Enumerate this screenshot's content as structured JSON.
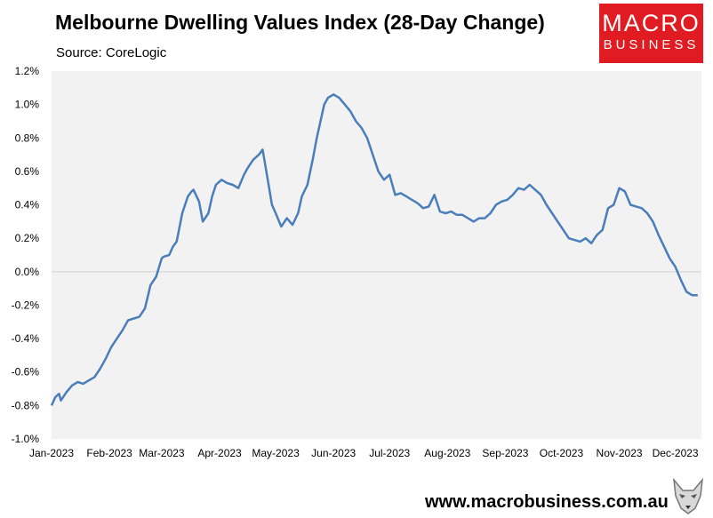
{
  "title": "Melbourne Dwelling Values Index (28-Day Change)",
  "source": "Source: CoreLogic",
  "logo": {
    "line1": "MACRO",
    "line2": "BUSINESS",
    "icon": "wolf-icon"
  },
  "footer_url": "www.macrobusiness.com.au",
  "colors": {
    "line": "#4a7ebb",
    "plot_bg": "#f2f2f2",
    "logo_bg": "#e11b22"
  },
  "chart_data": {
    "type": "line",
    "ylim": [
      -0.01,
      0.012
    ],
    "y_ticks": [
      "1.2%",
      "1.0%",
      "0.8%",
      "0.6%",
      "0.4%",
      "0.2%",
      "0.0%",
      "-0.2%",
      "-0.4%",
      "-0.6%",
      "-0.8%",
      "-1.0%"
    ],
    "x_ticks": [
      "Jan-2023",
      "Feb-2023",
      "Mar-2023",
      "Apr-2023",
      "May-2023",
      "Jun-2023",
      "Jul-2023",
      "Aug-2023",
      "Sep-2023",
      "Oct-2023",
      "Nov-2023",
      "Dec-2023"
    ],
    "x_tick_dates": [
      "2023-01-01",
      "2023-02-01",
      "2023-03-01",
      "2023-04-01",
      "2023-05-01",
      "2023-06-01",
      "2023-07-01",
      "2023-08-01",
      "2023-09-01",
      "2023-10-01",
      "2023-11-01",
      "2023-12-01"
    ],
    "xlim": [
      "2023-01-01",
      "2023-12-15"
    ],
    "grid": "zero-line-only",
    "series": [
      {
        "x": [
          "2023-01-01",
          "2023-01-03",
          "2023-01-05",
          "2023-01-06",
          "2023-01-09",
          "2023-01-12",
          "2023-01-15",
          "2023-01-18",
          "2023-01-21",
          "2023-01-24",
          "2023-01-27",
          "2023-01-30",
          "2023-02-02",
          "2023-02-05",
          "2023-02-08",
          "2023-02-11",
          "2023-02-14",
          "2023-02-17",
          "2023-02-20",
          "2023-02-23",
          "2023-02-26",
          "2023-03-01",
          "2023-03-02",
          "2023-03-05",
          "2023-03-07",
          "2023-03-09",
          "2023-03-12",
          "2023-03-15",
          "2023-03-17",
          "2023-03-18",
          "2023-03-21",
          "2023-03-23",
          "2023-03-26",
          "2023-03-28",
          "2023-03-30",
          "2023-04-02",
          "2023-04-05",
          "2023-04-08",
          "2023-04-11",
          "2023-04-14",
          "2023-04-16",
          "2023-04-19",
          "2023-04-22",
          "2023-04-24",
          "2023-04-26",
          "2023-04-29",
          "2023-05-01",
          "2023-05-04",
          "2023-05-07",
          "2023-05-10",
          "2023-05-13",
          "2023-05-15",
          "2023-05-18",
          "2023-05-21",
          "2023-05-23",
          "2023-05-25",
          "2023-05-27",
          "2023-05-29",
          "2023-06-01",
          "2023-06-04",
          "2023-06-07",
          "2023-06-10",
          "2023-06-13",
          "2023-06-16",
          "2023-06-19",
          "2023-06-22",
          "2023-06-25",
          "2023-06-28",
          "2023-07-01",
          "2023-07-04",
          "2023-07-07",
          "2023-07-10",
          "2023-07-13",
          "2023-07-16",
          "2023-07-19",
          "2023-07-22",
          "2023-07-25",
          "2023-07-28",
          "2023-07-31",
          "2023-08-03",
          "2023-08-06",
          "2023-08-09",
          "2023-08-12",
          "2023-08-15",
          "2023-08-18",
          "2023-08-21",
          "2023-08-24",
          "2023-08-27",
          "2023-08-30",
          "2023-09-02",
          "2023-09-05",
          "2023-09-08",
          "2023-09-11",
          "2023-09-14",
          "2023-09-17",
          "2023-09-20",
          "2023-09-23",
          "2023-09-26",
          "2023-09-29",
          "2023-10-02",
          "2023-10-05",
          "2023-10-08",
          "2023-10-11",
          "2023-10-14",
          "2023-10-17",
          "2023-10-20",
          "2023-10-23",
          "2023-10-26",
          "2023-10-29",
          "2023-11-01",
          "2023-11-04",
          "2023-11-07",
          "2023-11-10",
          "2023-11-13",
          "2023-11-16",
          "2023-11-19",
          "2023-11-22",
          "2023-11-25",
          "2023-11-28",
          "2023-12-01",
          "2023-12-04",
          "2023-12-07",
          "2023-12-10",
          "2023-12-13"
        ],
        "values": [
          -0.008,
          -0.0075,
          -0.0073,
          -0.0077,
          -0.0072,
          -0.0068,
          -0.0066,
          -0.0067,
          -0.0065,
          -0.0063,
          -0.0058,
          -0.0052,
          -0.0045,
          -0.004,
          -0.0035,
          -0.0029,
          -0.0028,
          -0.0027,
          -0.0022,
          -0.0008,
          -0.0003,
          0.0008,
          0.0009,
          0.001,
          0.0015,
          0.0018,
          0.0035,
          0.0045,
          0.0048,
          0.0049,
          0.0042,
          0.003,
          0.0035,
          0.0045,
          0.0052,
          0.0055,
          0.0053,
          0.0052,
          0.005,
          0.0058,
          0.0062,
          0.0067,
          0.007,
          0.0073,
          0.006,
          0.004,
          0.0035,
          0.0027,
          0.0032,
          0.0028,
          0.0035,
          0.0045,
          0.0052,
          0.0068,
          0.008,
          0.009,
          0.01,
          0.0104,
          0.0106,
          0.0104,
          0.01,
          0.0096,
          0.009,
          0.0086,
          0.008,
          0.007,
          0.006,
          0.0055,
          0.0058,
          0.0046,
          0.0047,
          0.0045,
          0.0043,
          0.0041,
          0.0038,
          0.0039,
          0.0046,
          0.0036,
          0.0035,
          0.0036,
          0.0034,
          0.0034,
          0.0032,
          0.003,
          0.0032,
          0.0032,
          0.0035,
          0.004,
          0.0042,
          0.0043,
          0.0046,
          0.005,
          0.0049,
          0.0052,
          0.0049,
          0.0046,
          0.004,
          0.0035,
          0.003,
          0.0025,
          0.002,
          0.0019,
          0.0018,
          0.002,
          0.0017,
          0.0022,
          0.0025,
          0.0038,
          0.004,
          0.005,
          0.0048,
          0.004,
          0.0039,
          0.0038,
          0.0035,
          0.003,
          0.0022,
          0.0015,
          0.0008,
          0.0003,
          -0.0005,
          -0.0012,
          -0.0014,
          -0.0014
        ]
      }
    ]
  }
}
